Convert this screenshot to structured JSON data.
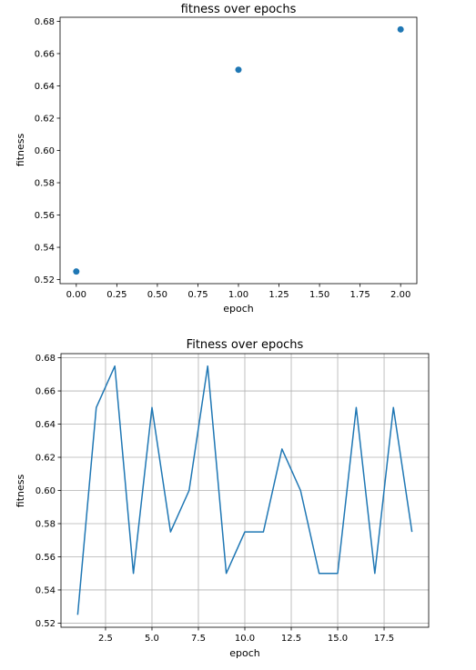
{
  "chart_data": [
    {
      "type": "scatter",
      "title": "fitness over epochs",
      "xlabel": "epoch",
      "ylabel": "fitness",
      "xlim": [
        -0.1,
        2.1
      ],
      "ylim": [
        0.5175,
        0.6825
      ],
      "xticks": [
        0.0,
        0.25,
        0.5,
        0.75,
        1.0,
        1.25,
        1.5,
        1.75,
        2.0
      ],
      "xtick_labels": [
        "0.00",
        "0.25",
        "0.50",
        "0.75",
        "1.00",
        "1.25",
        "1.50",
        "1.75",
        "2.00"
      ],
      "yticks": [
        0.52,
        0.54,
        0.56,
        0.58,
        0.6,
        0.62,
        0.64,
        0.66,
        0.68
      ],
      "ytick_labels": [
        "0.52",
        "0.54",
        "0.56",
        "0.58",
        "0.60",
        "0.62",
        "0.64",
        "0.66",
        "0.68"
      ],
      "grid": false,
      "color": "#1f77b4",
      "x": [
        0,
        1,
        2
      ],
      "y": [
        0.525,
        0.65,
        0.675
      ]
    },
    {
      "type": "line",
      "title": "Fitness over epochs",
      "xlabel": "epoch",
      "ylabel": "fitness",
      "xlim": [
        0.1,
        19.9
      ],
      "ylim": [
        0.5175,
        0.6825
      ],
      "xticks": [
        2.5,
        5.0,
        7.5,
        10.0,
        12.5,
        15.0,
        17.5
      ],
      "xtick_labels": [
        "2.5",
        "5.0",
        "7.5",
        "10.0",
        "12.5",
        "15.0",
        "17.5"
      ],
      "yticks": [
        0.52,
        0.54,
        0.56,
        0.58,
        0.6,
        0.62,
        0.64,
        0.66,
        0.68
      ],
      "ytick_labels": [
        "0.52",
        "0.54",
        "0.56",
        "0.58",
        "0.60",
        "0.62",
        "0.64",
        "0.66",
        "0.68"
      ],
      "grid": true,
      "color": "#1f77b4",
      "x": [
        1,
        2,
        3,
        4,
        5,
        6,
        7,
        8,
        9,
        10,
        11,
        12,
        13,
        14,
        15,
        16,
        17,
        18,
        19
      ],
      "y": [
        0.525,
        0.65,
        0.675,
        0.55,
        0.65,
        0.575,
        0.6,
        0.675,
        0.55,
        0.575,
        0.575,
        0.625,
        0.6,
        0.55,
        0.55,
        0.65,
        0.55,
        0.65,
        0.575
      ]
    }
  ]
}
